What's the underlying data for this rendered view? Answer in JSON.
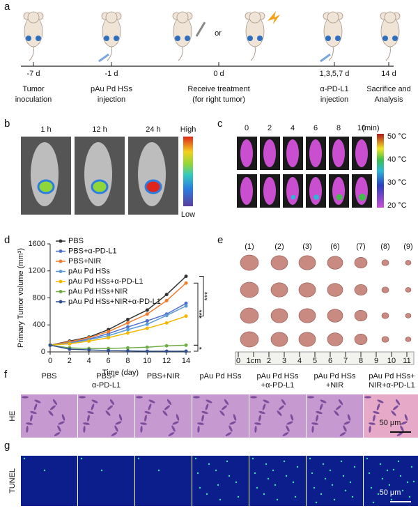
{
  "panel_labels": [
    "a",
    "b",
    "c",
    "d",
    "e",
    "f",
    "g"
  ],
  "panel_a": {
    "or": "or",
    "timepoints": [
      {
        "day": "-7 d",
        "label": [
          "Tumor",
          "inoculation"
        ]
      },
      {
        "day": "-1 d",
        "label": [
          "pAu Pd HSs",
          "injection"
        ]
      },
      {
        "day": "0 d",
        "label": [
          "Receive treatment",
          "(for right tumor)"
        ]
      },
      {
        "day": "1,3,5,7 d",
        "label": [
          "α-PD-L1",
          "injection"
        ]
      },
      {
        "day": "14 d",
        "label": [
          "Sacrifice and",
          "Analysis"
        ]
      }
    ]
  },
  "panel_b": {
    "times": [
      "1 h",
      "12 h",
      "24 h"
    ],
    "scale_high": "High",
    "scale_low": "Low"
  },
  "panel_c": {
    "times": [
      "0",
      "2",
      "4",
      "6",
      "8",
      "10"
    ],
    "unit": "(min)",
    "scale_ticks": [
      "50 °C",
      "40 °C",
      "30 °C",
      "20 °C"
    ]
  },
  "chart_data": {
    "type": "line",
    "y_label": "Primary Tumor volume (mm³)",
    "x_label": "Time (day)",
    "x": [
      0,
      2,
      4,
      6,
      8,
      10,
      12,
      14
    ],
    "xlim": [
      0,
      14.5
    ],
    "xticks": [
      0,
      2,
      4,
      6,
      8,
      10,
      12,
      14
    ],
    "ylim": [
      0,
      1600
    ],
    "yticks": [
      0,
      400,
      800,
      1200,
      1600
    ],
    "legend": "upper left",
    "series": [
      {
        "name": "PBS",
        "color": "#333333",
        "values": [
          100,
          160,
          220,
          330,
          480,
          620,
          850,
          1120
        ]
      },
      {
        "name": "PBS+α-PD-L1",
        "color": "#4f6fd0",
        "values": [
          100,
          140,
          190,
          270,
          370,
          460,
          560,
          720
        ]
      },
      {
        "name": "PBS+NIR",
        "color": "#f07c30",
        "values": [
          100,
          150,
          210,
          300,
          430,
          560,
          760,
          1020
        ]
      },
      {
        "name": "pAu Pd HSs",
        "color": "#5b9bd5",
        "values": [
          100,
          130,
          180,
          240,
          330,
          410,
          540,
          680
        ]
      },
      {
        "name": "pAu Pd HSs+α-PD-L1",
        "color": "#f5b800",
        "values": [
          100,
          120,
          160,
          210,
          280,
          350,
          430,
          530
        ]
      },
      {
        "name": "pAu Pd HSs+NIR",
        "color": "#70ad47",
        "values": [
          100,
          60,
          50,
          50,
          60,
          70,
          90,
          100
        ]
      },
      {
        "name": "pAu Pd HSs+NIR+α-PD-L1",
        "color": "#2f4f8f",
        "values": [
          100,
          40,
          30,
          20,
          15,
          10,
          10,
          10
        ]
      }
    ],
    "annotations": [
      "***",
      "***",
      "*"
    ]
  },
  "panel_e": {
    "groups": [
      "(1)",
      "(2)",
      "(3)",
      "(6)",
      "(7)",
      "(8)",
      "(9)"
    ],
    "ruler": [
      "0",
      "1cm",
      "2",
      "3",
      "4",
      "5",
      "6",
      "7",
      "8",
      "9",
      "10",
      "11"
    ]
  },
  "panel_f": {
    "columns": [
      [
        "PBS"
      ],
      [
        "PBS+",
        "α-PD-L1"
      ],
      [
        "PBS+NIR"
      ],
      [
        "pAu Pd HSs"
      ],
      [
        "pAu Pd HSs",
        "+α-PD-L1"
      ],
      [
        "pAu Pd HSs",
        "+NIR"
      ],
      [
        "pAu Pd HSs+",
        "NIR+α-PD-L1"
      ]
    ],
    "rows": [
      "HE",
      "TUNEL"
    ],
    "scale_bar": "50 μm"
  }
}
